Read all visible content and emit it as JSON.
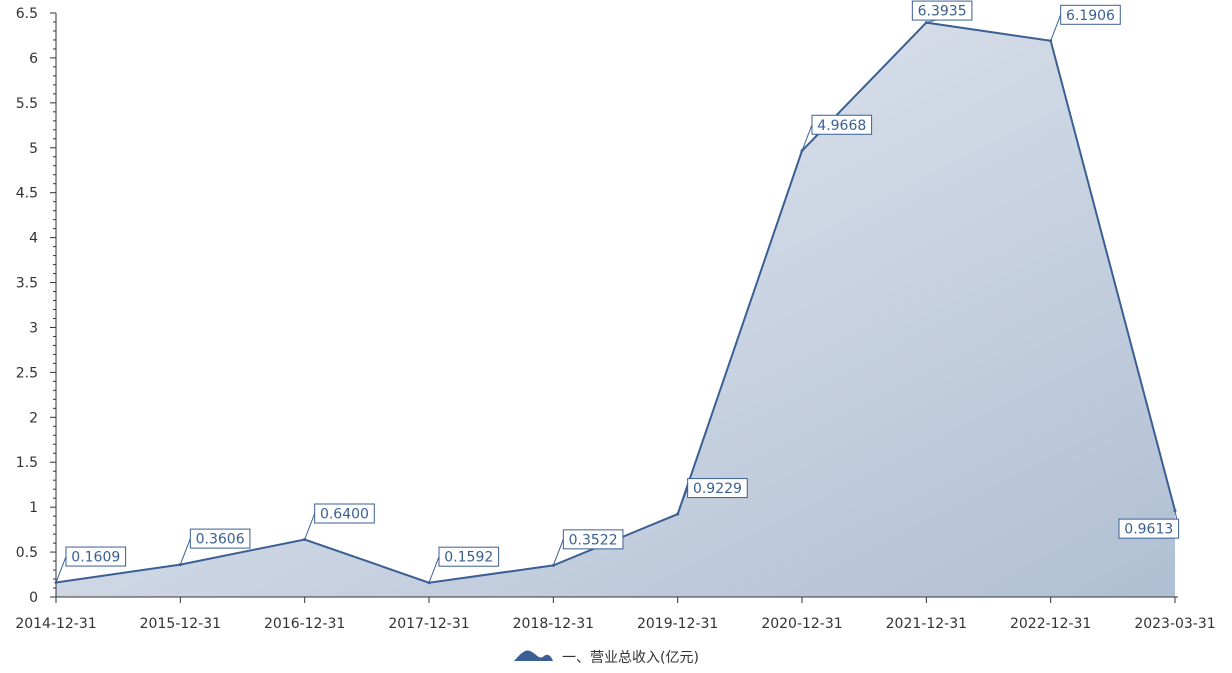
{
  "chart_data": {
    "type": "area",
    "categories": [
      "2014-12-31",
      "2015-12-31",
      "2016-12-31",
      "2017-12-31",
      "2018-12-31",
      "2019-12-31",
      "2020-12-31",
      "2021-12-31",
      "2022-12-31",
      "2023-03-31"
    ],
    "series": [
      {
        "name": "一、营业总收入(亿元)",
        "values": [
          0.1609,
          0.3606,
          0.64,
          0.1592,
          0.3522,
          0.9229,
          4.9668,
          6.3935,
          6.1906,
          0.9613
        ],
        "labels": [
          "0.1609",
          "0.3606",
          "0.6400",
          "0.1592",
          "0.3522",
          "0.9229",
          "4.9668",
          "6.3935",
          "6.1906",
          "0.9613"
        ]
      }
    ],
    "ylim": [
      0,
      6.5
    ],
    "yticks": [
      "0",
      "0.5",
      "1",
      "1.5",
      "2",
      "2.5",
      "3",
      "3.5",
      "4",
      "4.5",
      "5",
      "5.5",
      "6",
      "6.5"
    ],
    "legend_position": "bottom-center",
    "grid": false,
    "colors": {
      "line": "#3a5f93",
      "area_light": "#e6e9f2",
      "area_dark": "#b0bfd3",
      "axis": "#333333"
    }
  }
}
